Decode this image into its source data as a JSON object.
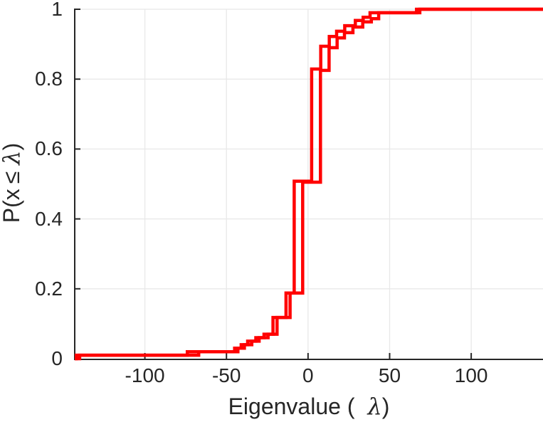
{
  "figure": {
    "background": "#ffffff",
    "xlabel": {
      "prefix": "Eigenvalue (",
      "lambda": "λ",
      "suffix": ")"
    },
    "ylabel": {
      "prefix": "P(x",
      "leq": "≤",
      "lambda": "λ",
      "suffix": ")"
    }
  },
  "chart_data": {
    "type": "line",
    "subtype": "empirical-cdf-stairs",
    "title": "",
    "xlabel": "Eigenvalue ( λ)",
    "ylabel": "P(x ≤ λ)",
    "xlim": [
      -143,
      144
    ],
    "ylim": [
      0,
      1
    ],
    "x_ticks": [
      -100,
      -50,
      0,
      50,
      100
    ],
    "y_ticks": [
      0,
      0.2,
      0.4,
      0.6,
      0.8,
      1
    ],
    "grid": true,
    "legend": null,
    "colors": {
      "line": "#ff0000",
      "axis": "#262626",
      "grid": "#e8e8e8",
      "tick_label": "#262626"
    },
    "line_width": 4.5,
    "series": [
      {
        "name": "ecdf-curve-1",
        "points": [
          [
            -142,
            0.01
          ],
          [
            -74,
            0.02
          ],
          [
            -45,
            0.03
          ],
          [
            -41,
            0.04
          ],
          [
            -37,
            0.05
          ],
          [
            -32,
            0.06
          ],
          [
            -27,
            0.07
          ],
          [
            -21.5,
            0.118
          ],
          [
            -13.5,
            0.188
          ],
          [
            -8.5,
            0.508
          ],
          [
            2.2,
            0.829
          ],
          [
            7.8,
            0.894
          ],
          [
            13.0,
            0.922
          ],
          [
            17.5,
            0.937
          ],
          [
            22.5,
            0.953
          ],
          [
            29.0,
            0.968
          ],
          [
            33.8,
            0.977
          ],
          [
            38.0,
            0.99
          ],
          [
            66.5,
            1.0
          ]
        ]
      },
      {
        "name": "ecdf-curve-2",
        "points": [
          [
            -140,
            0.01
          ],
          [
            -67,
            0.02
          ],
          [
            -43,
            0.03
          ],
          [
            -39,
            0.04
          ],
          [
            -34.5,
            0.05
          ],
          [
            -30,
            0.06
          ],
          [
            -24.5,
            0.07
          ],
          [
            -19,
            0.118
          ],
          [
            -11,
            0.188
          ],
          [
            -3.3,
            0.505
          ],
          [
            7.6,
            0.825
          ],
          [
            12.9,
            0.89
          ],
          [
            17.8,
            0.918
          ],
          [
            22.3,
            0.933
          ],
          [
            27.5,
            0.949
          ],
          [
            33.5,
            0.964
          ],
          [
            38.8,
            0.973
          ],
          [
            43.3,
            0.99
          ],
          [
            68.5,
            1.0
          ]
        ]
      }
    ]
  }
}
